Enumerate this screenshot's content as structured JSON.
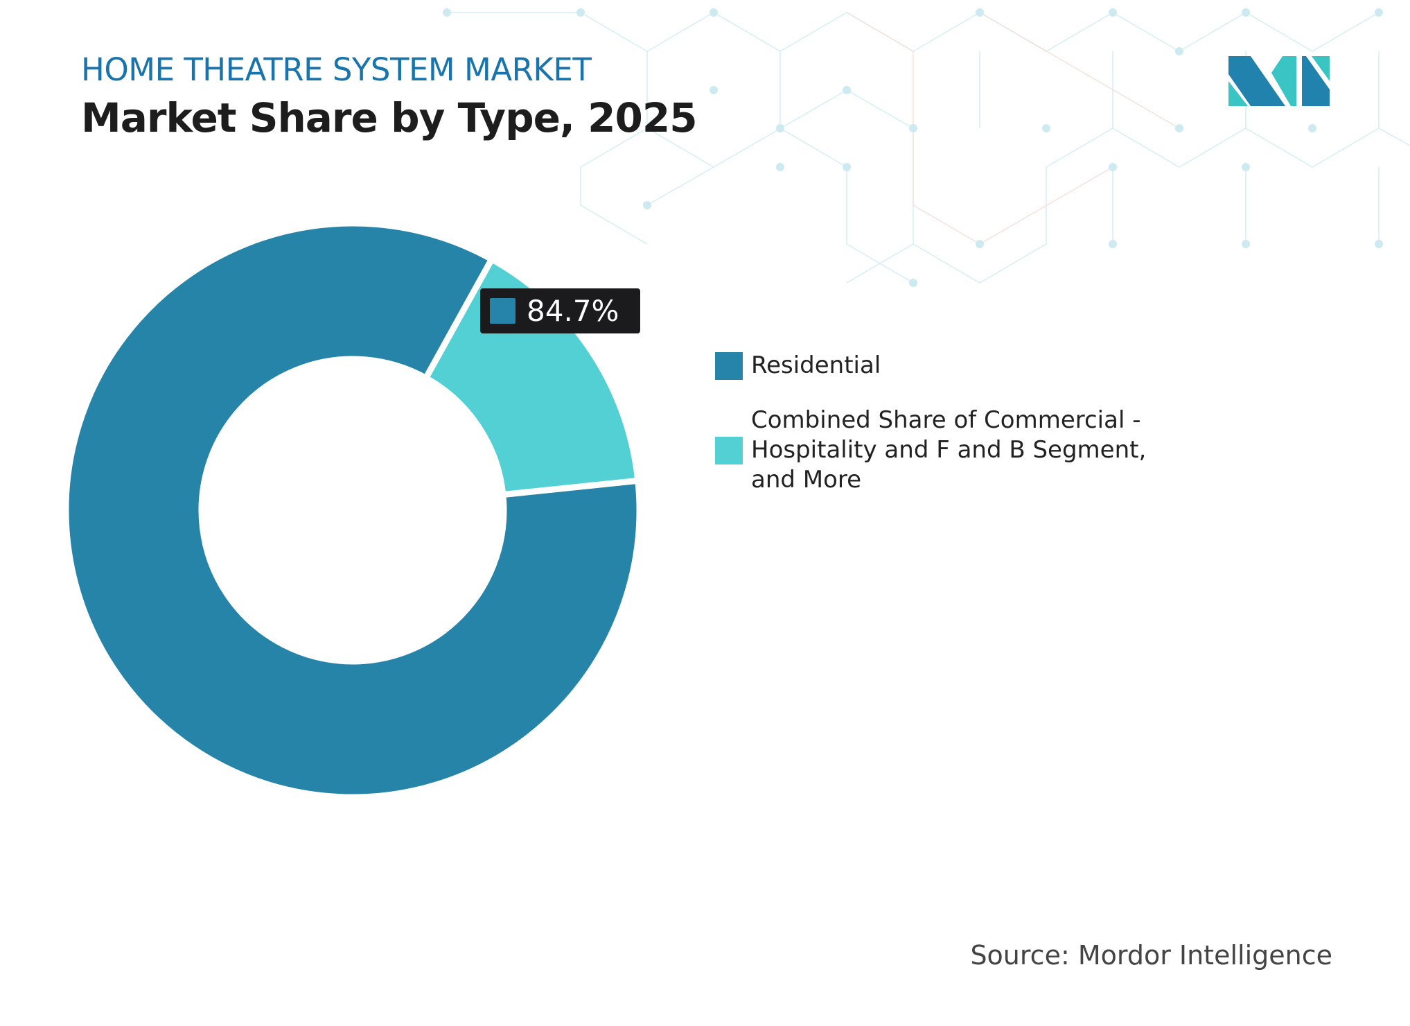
{
  "header": {
    "subtitle": "HOME THEATRE SYSTEM MARKET",
    "title": "Market Share by Type, 2025"
  },
  "colors": {
    "residential": "#2684a8",
    "commercial": "#52d0d3",
    "title_blue": "#1874ac",
    "tooltip_bg": "#1b1b1d"
  },
  "chart_data": {
    "type": "pie",
    "donut": true,
    "title": "Market Share by Type, 2025",
    "categories": [
      "Residential",
      "Combined Share of Commercial - Hospitality and F and B Segment, and More"
    ],
    "values": [
      84.7,
      15.3
    ],
    "unit": "%",
    "legend_placement": "right",
    "data_labels": [
      {
        "category": "Residential",
        "text": "84.7%"
      }
    ]
  },
  "tooltip": {
    "value": "84.7%"
  },
  "legend": [
    {
      "label": "Residential",
      "color": "#2684a8"
    },
    {
      "label": "Combined Share of Commercial - Hospitality and F and B Segment, and More",
      "color": "#52d0d3"
    }
  ],
  "source": "Source: Mordor Intelligence",
  "logo": {
    "text": "Mordor Intelligence"
  }
}
